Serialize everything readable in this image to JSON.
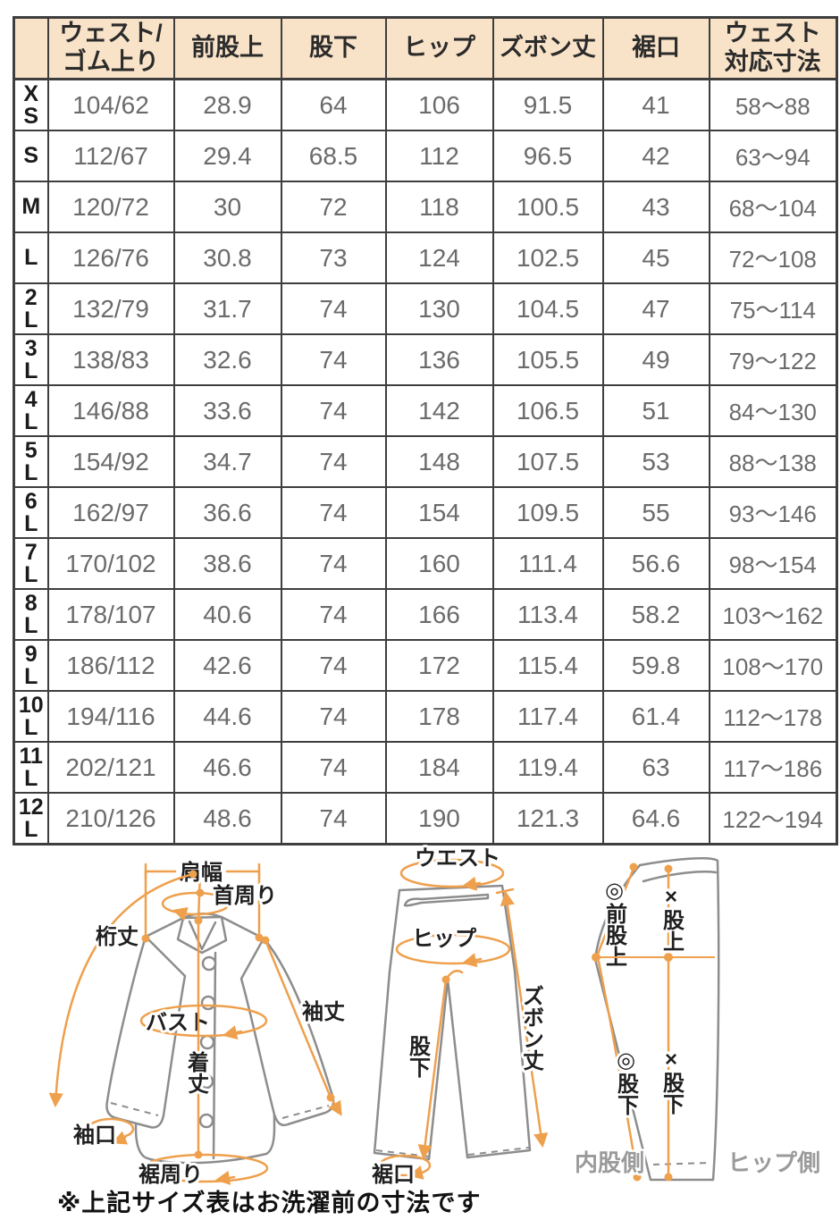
{
  "table": {
    "header": [
      {
        "lines": [
          "ウェスト/",
          "ゴム上り"
        ]
      },
      {
        "lines": [
          "前股上"
        ]
      },
      {
        "lines": [
          "股下"
        ]
      },
      {
        "lines": [
          "ヒップ"
        ]
      },
      {
        "lines": [
          "ズボン丈"
        ]
      },
      {
        "lines": [
          "裾口"
        ]
      },
      {
        "lines": [
          "ウェスト",
          "対応寸法"
        ]
      }
    ],
    "rows": [
      {
        "size": "XS",
        "size_lines": [
          "X",
          "S"
        ],
        "values": [
          "104/62",
          "28.9",
          "64",
          "106",
          "91.5",
          "41",
          "58～88"
        ]
      },
      {
        "size": "S",
        "size_lines": [
          "S"
        ],
        "values": [
          "112/67",
          "29.4",
          "68.5",
          "112",
          "96.5",
          "42",
          "63～94"
        ]
      },
      {
        "size": "M",
        "size_lines": [
          "M"
        ],
        "values": [
          "120/72",
          "30",
          "72",
          "118",
          "100.5",
          "43",
          "68～104"
        ]
      },
      {
        "size": "L",
        "size_lines": [
          "L"
        ],
        "values": [
          "126/76",
          "30.8",
          "73",
          "124",
          "102.5",
          "45",
          "72～108"
        ]
      },
      {
        "size": "2L",
        "size_lines": [
          "2",
          "L"
        ],
        "values": [
          "132/79",
          "31.7",
          "74",
          "130",
          "104.5",
          "47",
          "75～114"
        ]
      },
      {
        "size": "3L",
        "size_lines": [
          "3",
          "L"
        ],
        "values": [
          "138/83",
          "32.6",
          "74",
          "136",
          "105.5",
          "49",
          "79～122"
        ]
      },
      {
        "size": "4L",
        "size_lines": [
          "4",
          "L"
        ],
        "values": [
          "146/88",
          "33.6",
          "74",
          "142",
          "106.5",
          "51",
          "84～130"
        ]
      },
      {
        "size": "5L",
        "size_lines": [
          "5",
          "L"
        ],
        "values": [
          "154/92",
          "34.7",
          "74",
          "148",
          "107.5",
          "53",
          "88～138"
        ]
      },
      {
        "size": "6L",
        "size_lines": [
          "6",
          "L"
        ],
        "values": [
          "162/97",
          "36.6",
          "74",
          "154",
          "109.5",
          "55",
          "93～146"
        ]
      },
      {
        "size": "7L",
        "size_lines": [
          "7",
          "L"
        ],
        "values": [
          "170/102",
          "38.6",
          "74",
          "160",
          "111.4",
          "56.6",
          "98～154"
        ]
      },
      {
        "size": "8L",
        "size_lines": [
          "8",
          "L"
        ],
        "values": [
          "178/107",
          "40.6",
          "74",
          "166",
          "113.4",
          "58.2",
          "103～162"
        ]
      },
      {
        "size": "9L",
        "size_lines": [
          "9",
          "L"
        ],
        "values": [
          "186/112",
          "42.6",
          "74",
          "172",
          "115.4",
          "59.8",
          "108～170"
        ]
      },
      {
        "size": "10L",
        "size_lines": [
          "10",
          "L"
        ],
        "values": [
          "194/116",
          "44.6",
          "74",
          "178",
          "117.4",
          "61.4",
          "112～178"
        ]
      },
      {
        "size": "11L",
        "size_lines": [
          "11",
          "L"
        ],
        "values": [
          "202/121",
          "46.6",
          "74",
          "184",
          "119.4",
          "63",
          "117～186"
        ]
      },
      {
        "size": "12L",
        "size_lines": [
          "12",
          "L"
        ],
        "values": [
          "210/126",
          "48.6",
          "74",
          "190",
          "121.3",
          "64.6",
          "122～194"
        ]
      }
    ]
  },
  "diagrams": {
    "shirt": {
      "shoulder_width": "肩幅",
      "neck_round": "首周り",
      "yuki_length": "桁丈",
      "bust": "バスト",
      "body_length": "着丈",
      "sleeve_length": "袖丈",
      "cuff_opening": "袖口",
      "hem_round": "裾周り"
    },
    "pants_front": {
      "waist": "ウエスト",
      "hip": "ヒップ",
      "pants_length": "ズボン丈",
      "inseam": "股下",
      "hem_opening": "裾口"
    },
    "pants_side": {
      "front_rise": "◎前股上",
      "rise": "×股上",
      "inseam_a": "◎股下",
      "inseam_b": "×股下",
      "inner_side": "内股側",
      "hip_side": "ヒップ側"
    }
  },
  "footnote": "※上記サイズ表はお洗濯前の寸法です",
  "colors": {
    "header_bg": "#f9e3c8",
    "table_border": "#3e3e3e",
    "value_text": "#6b6b6b",
    "accent_orange": "#eea04d",
    "outline_gray": "#8d8d8d",
    "side_label_gray": "#9a9a9a"
  }
}
